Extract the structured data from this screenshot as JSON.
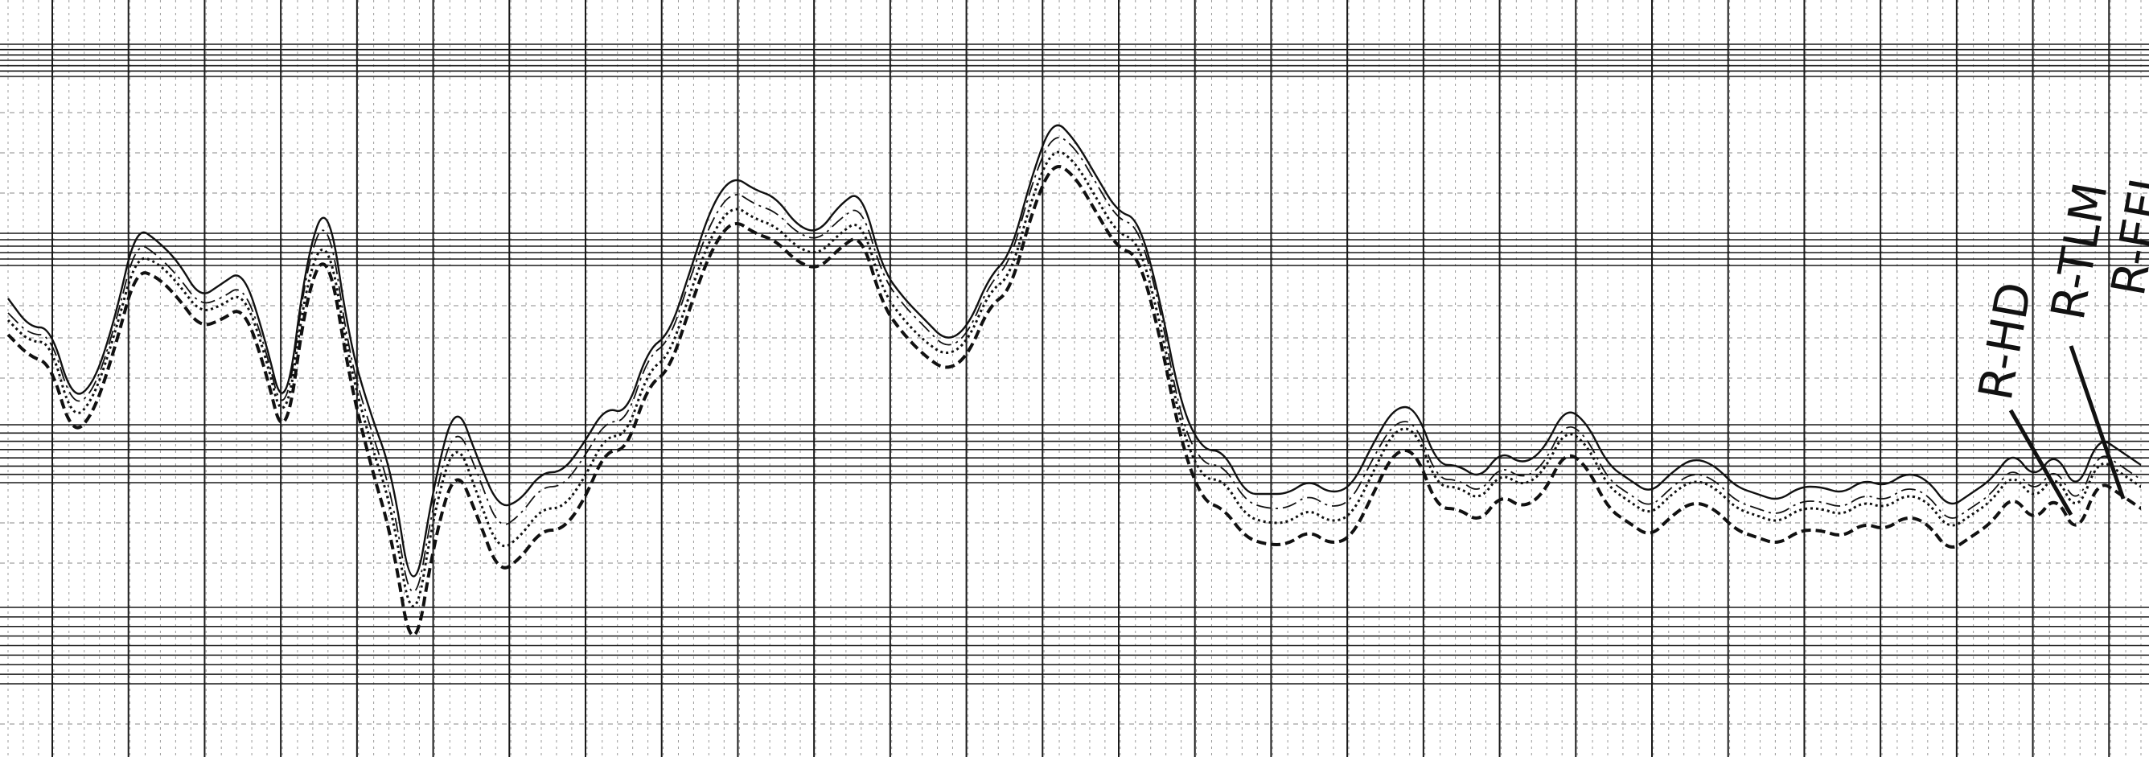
{
  "chart_data": {
    "type": "line",
    "grid": true,
    "xlim": [
      0,
      100
    ],
    "ylim": [
      -50,
      50
    ],
    "series": [
      {
        "name": "",
        "style": "solid",
        "color": "#111111",
        "x": [
          0,
          1,
          2,
          3,
          4,
          5,
          6,
          7,
          8,
          9,
          10,
          11,
          12,
          13,
          14,
          15,
          16,
          17,
          18,
          19,
          20,
          21,
          22,
          23,
          24,
          25,
          26,
          27,
          28,
          29,
          30,
          31,
          32,
          33,
          34,
          35,
          36,
          37,
          38,
          39,
          40,
          41,
          42,
          43,
          44,
          45,
          46,
          47,
          48,
          49,
          50,
          51,
          52,
          53,
          54,
          55,
          56,
          57,
          58,
          59,
          60,
          61,
          62,
          63,
          64,
          65,
          66,
          67,
          68,
          69,
          70,
          71,
          72,
          73,
          74,
          75,
          76,
          77,
          78,
          79,
          80,
          81,
          82,
          83,
          84,
          85,
          86,
          87,
          88,
          89,
          90,
          91,
          92,
          93,
          94,
          95,
          96,
          97,
          98,
          99,
          100
        ],
        "values": [
          11,
          7,
          7,
          -3,
          -1,
          8,
          21,
          19,
          16,
          11,
          13,
          15,
          6,
          -6,
          17,
          25,
          5,
          -5,
          -13,
          -32,
          -14,
          -3,
          -11,
          -18,
          -17,
          -13,
          -13,
          -9,
          -4,
          -5,
          4,
          6,
          15,
          24,
          28,
          26,
          25,
          21,
          20,
          24,
          26,
          15,
          11,
          8,
          5,
          7,
          14,
          17,
          28,
          36,
          33,
          28,
          23,
          22,
          11,
          -4,
          -10,
          -10,
          -16,
          -16,
          -16,
          -14,
          -16,
          -15,
          -9,
          -4,
          -4,
          -12,
          -12,
          -14,
          -10,
          -12,
          -10,
          -4,
          -6,
          -12,
          -14,
          -16,
          -13,
          -11,
          -12,
          -15,
          -16,
          -17,
          -15,
          -15,
          -16,
          -14,
          -15,
          -13,
          -14,
          -18,
          -16,
          -14,
          -10,
          -14,
          -10,
          -16,
          -8,
          -10,
          -12
        ]
      },
      {
        "name": "",
        "style": "dotted",
        "color": "#111111",
        "x": [
          0,
          1,
          2,
          3,
          4,
          5,
          6,
          7,
          8,
          9,
          10,
          11,
          12,
          13,
          14,
          15,
          16,
          17,
          18,
          19,
          20,
          21,
          22,
          23,
          24,
          25,
          26,
          27,
          28,
          29,
          30,
          31,
          32,
          33,
          34,
          35,
          36,
          37,
          38,
          39,
          40,
          41,
          42,
          43,
          44,
          45,
          46,
          47,
          48,
          49,
          50,
          51,
          52,
          53,
          54,
          55,
          56,
          57,
          58,
          59,
          60,
          61,
          62,
          63,
          64,
          65,
          66,
          67,
          68,
          69,
          70,
          71,
          72,
          73,
          74,
          75,
          76,
          77,
          78,
          79,
          80,
          81,
          82,
          83,
          84,
          85,
          86,
          87,
          88,
          89,
          90,
          91,
          92,
          93,
          94,
          95,
          96,
          97,
          98,
          99,
          100
        ],
        "values": [
          8,
          5,
          5,
          -6,
          -3,
          6,
          17,
          16,
          13,
          9,
          10,
          12,
          4,
          -8,
          14,
          20,
          2,
          -9,
          -18,
          -36,
          -18,
          -8,
          -16,
          -24,
          -22,
          -18,
          -18,
          -14,
          -8,
          -8,
          1,
          3,
          12,
          20,
          24,
          22,
          21,
          18,
          17,
          20,
          22,
          12,
          8,
          5,
          3,
          5,
          12,
          14,
          25,
          32,
          30,
          25,
          20,
          19,
          8,
          -7,
          -14,
          -14,
          -19,
          -20,
          -20,
          -18,
          -20,
          -19,
          -13,
          -7,
          -7,
          -15,
          -15,
          -17,
          -13,
          -15,
          -13,
          -7,
          -9,
          -15,
          -17,
          -19,
          -16,
          -14,
          -15,
          -18,
          -19,
          -20,
          -18,
          -18,
          -19,
          -17,
          -18,
          -16,
          -17,
          -21,
          -19,
          -17,
          -13,
          -17,
          -13,
          -19,
          -11,
          -13,
          -15
        ]
      },
      {
        "name": "",
        "style": "dashed",
        "color": "#111111",
        "x": [
          0,
          1,
          2,
          3,
          4,
          5,
          6,
          7,
          8,
          9,
          10,
          11,
          12,
          13,
          14,
          15,
          16,
          17,
          18,
          19,
          20,
          21,
          22,
          23,
          24,
          25,
          26,
          27,
          28,
          29,
          30,
          31,
          32,
          33,
          34,
          35,
          36,
          37,
          38,
          39,
          40,
          41,
          42,
          43,
          44,
          45,
          46,
          47,
          48,
          49,
          50,
          51,
          52,
          53,
          54,
          55,
          56,
          57,
          58,
          59,
          60,
          61,
          62,
          63,
          64,
          65,
          66,
          67,
          68,
          69,
          70,
          71,
          72,
          73,
          74,
          75,
          76,
          77,
          78,
          79,
          80,
          81,
          82,
          83,
          84,
          85,
          86,
          87,
          88,
          89,
          90,
          91,
          92,
          93,
          94,
          95,
          96,
          97,
          98,
          99,
          100
        ],
        "values": [
          6,
          3,
          2,
          -8,
          -5,
          4,
          15,
          14,
          11,
          7,
          8,
          10,
          2,
          -10,
          12,
          18,
          0,
          -12,
          -22,
          -40,
          -22,
          -12,
          -19,
          -27,
          -25,
          -21,
          -21,
          -17,
          -10,
          -10,
          -1,
          1,
          10,
          18,
          22,
          20,
          19,
          16,
          15,
          18,
          20,
          10,
          6,
          3,
          1,
          3,
          10,
          12,
          23,
          30,
          28,
          23,
          18,
          17,
          6,
          -9,
          -17,
          -18,
          -22,
          -23,
          -23,
          -21,
          -23,
          -22,
          -16,
          -10,
          -10,
          -18,
          -18,
          -20,
          -16,
          -18,
          -16,
          -10,
          -12,
          -18,
          -20,
          -22,
          -19,
          -17,
          -18,
          -21,
          -22,
          -23,
          -21,
          -21,
          -22,
          -20,
          -21,
          -19,
          -20,
          -24,
          -22,
          -20,
          -16,
          -20,
          -16,
          -22,
          -14,
          -16,
          -18
        ]
      },
      {
        "name": "",
        "style": "dash-dot",
        "color": "#111111",
        "x": [
          0,
          1,
          2,
          3,
          4,
          5,
          6,
          7,
          8,
          9,
          10,
          11,
          12,
          13,
          14,
          15,
          16,
          17,
          18,
          19,
          20,
          21,
          22,
          23,
          24,
          25,
          26,
          27,
          28,
          29,
          30,
          31,
          32,
          33,
          34,
          35,
          36,
          37,
          38,
          39,
          40,
          41,
          42,
          43,
          44,
          45,
          46,
          47,
          48,
          49,
          50,
          51,
          52,
          53,
          54,
          55,
          56,
          57,
          58,
          59,
          60,
          61,
          62,
          63,
          64,
          65,
          66,
          67,
          68,
          69,
          70,
          71,
          72,
          73,
          74,
          75,
          76,
          77,
          78,
          79,
          80,
          81,
          82,
          83,
          84,
          85,
          86,
          87,
          88,
          89,
          90,
          91,
          92,
          93,
          94,
          95,
          96,
          97,
          98,
          99,
          100
        ],
        "values": [
          9,
          6,
          6,
          -4,
          -2,
          7,
          19,
          17,
          14,
          10,
          11,
          13,
          5,
          -7,
          16,
          23,
          3,
          -7,
          -16,
          -34,
          -16,
          -6,
          -13,
          -21,
          -19,
          -15,
          -15,
          -11,
          -6,
          -6,
          3,
          5,
          14,
          22,
          26,
          24,
          23,
          20,
          19,
          22,
          24,
          14,
          10,
          7,
          4,
          6,
          13,
          16,
          27,
          34,
          32,
          27,
          22,
          21,
          10,
          -6,
          -12,
          -12,
          -17,
          -18,
          -18,
          -16,
          -18,
          -17,
          -11,
          -6,
          -6,
          -14,
          -14,
          -16,
          -12,
          -14,
          -12,
          -6,
          -8,
          -14,
          -16,
          -18,
          -15,
          -13,
          -14,
          -17,
          -18,
          -19,
          -17,
          -17,
          -18,
          -16,
          -17,
          -15,
          -16,
          -20,
          -18,
          -16,
          -12,
          -16,
          -12,
          -18,
          -10,
          -12,
          -14
        ]
      }
    ],
    "annotations": [
      {
        "text": "R-HD",
        "kind": "handwritten"
      },
      {
        "text": "R-TLM",
        "kind": "handwritten"
      },
      {
        "text": "R-EFL",
        "kind": "handwritten"
      }
    ]
  }
}
